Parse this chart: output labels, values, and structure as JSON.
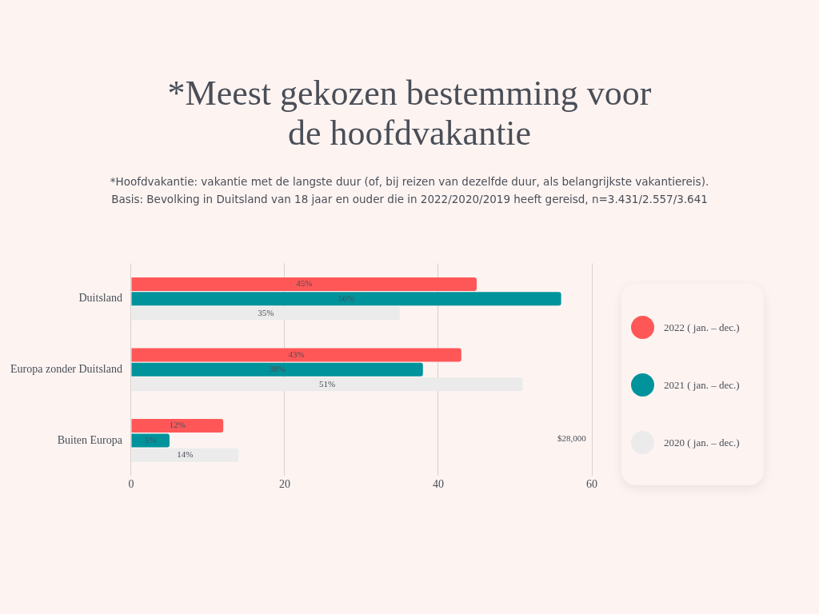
{
  "chart_data": {
    "type": "bar",
    "orientation": "horizontal",
    "title": "*Meest gekozen bestemming voor de hoofdvakantie",
    "subtitle": "*Hoofdvakantie: vakantie met de langste duur (of, bij reizen van dezelfde duur, als belangrijkste vakantiereis).\nBasis: Bevolking in Duitsland van 18 jaar en ouder die in 2022/2020/2019 heeft gereisd, n=3.431/2.557/3.641",
    "categories": [
      "Duitsland",
      "Europa zonder Duitsland",
      "Buiten Europa"
    ],
    "series": [
      {
        "name": "2022 ( jan. – dec.)",
        "color": "#ff5757",
        "values": [
          45,
          43,
          12
        ],
        "value_labels": [
          "45%",
          "43%",
          "12%"
        ]
      },
      {
        "name": "2021 ( jan. – dec.)",
        "color": "#00939c",
        "values": [
          56,
          38,
          5
        ],
        "value_labels": [
          "56%",
          "38%",
          "5%"
        ]
      },
      {
        "name": "2020 ( jan. – dec.)",
        "color": "#ebebeb",
        "values": [
          35,
          51,
          14
        ],
        "value_labels": [
          "35%",
          "51%",
          "14%"
        ]
      }
    ],
    "xlim": [
      0,
      60
    ],
    "xticks": [
      0,
      20,
      40,
      60
    ],
    "grid": "x",
    "legend": "right",
    "annotations": [
      "$28,000"
    ]
  }
}
